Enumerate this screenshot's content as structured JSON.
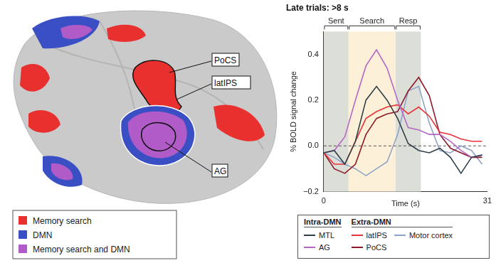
{
  "brain_map": {
    "region_labels": [
      "PoCS",
      "latIPS",
      "AG"
    ],
    "legend": [
      {
        "label": "Memory search",
        "color": "#e8312f"
      },
      {
        "label": "DMN",
        "color": "#3b4fc4"
      },
      {
        "label": "Memory search and DMN",
        "color": "#b05bc8"
      }
    ]
  },
  "chart_data": {
    "type": "line",
    "title": "Late trials: >8 s",
    "x_label": "Time (s)",
    "y_label": "% BOLD signal change",
    "x": [
      0,
      2,
      4,
      6,
      8,
      10,
      12,
      14,
      16,
      18,
      20,
      22,
      24,
      26,
      28,
      30
    ],
    "series": [
      {
        "name": "MTL",
        "color": "#2f3f4a",
        "values": [
          -0.03,
          -0.02,
          -0.08,
          0.02,
          0.2,
          0.26,
          0.2,
          0.12,
          0.01,
          -0.02,
          -0.03,
          -0.01,
          -0.05,
          -0.12,
          -0.05,
          -0.04
        ]
      },
      {
        "name": "AG",
        "color": "#b666c4",
        "values": [
          -0.03,
          -0.02,
          0.04,
          0.2,
          0.35,
          0.42,
          0.34,
          0.2,
          0.08,
          0.07,
          0.05,
          0.05,
          0.02,
          -0.02,
          -0.05,
          -0.04
        ]
      },
      {
        "name": "latIPS",
        "color": "#e8333a",
        "values": [
          -0.03,
          -0.08,
          -0.08,
          0.02,
          0.12,
          0.15,
          0.17,
          0.18,
          0.14,
          0.17,
          0.13,
          0.06,
          0.05,
          0.03,
          0.02,
          0.02
        ]
      },
      {
        "name": "PoCS",
        "color": "#8b1a2b",
        "values": [
          -0.03,
          -0.1,
          -0.12,
          -0.08,
          0.05,
          0.12,
          0.14,
          0.15,
          0.24,
          0.3,
          0.22,
          0.05,
          -0.01,
          -0.03,
          -0.05,
          -0.05
        ]
      },
      {
        "name": "Motor cortex",
        "color": "#8fa3c9",
        "values": [
          -0.03,
          -0.05,
          -0.08,
          -0.1,
          -0.13,
          -0.1,
          -0.07,
          0.05,
          0.24,
          0.26,
          0.1,
          -0.02,
          -0.03,
          0.0,
          -0.02,
          -0.08
        ]
      }
    ],
    "legend_groups": [
      {
        "title": "Intra-DMN",
        "series": [
          "MTL",
          "AG"
        ]
      },
      {
        "title": "Extra-DMN",
        "series": [
          "latIPS",
          "PoCS",
          "Motor cortex"
        ]
      }
    ],
    "phases": [
      {
        "label": "Sent",
        "start": 0,
        "end": 4.7,
        "color": "#dcdfd8"
      },
      {
        "label": "Search",
        "start": 4.7,
        "end": 13.6,
        "color": "#fcf1d8"
      },
      {
        "label": "Resp",
        "start": 13.6,
        "end": 18.4,
        "color": "#dcdfd8"
      }
    ],
    "reference_line": {
      "value": 0,
      "line_style": "dashed"
    },
    "xlim": [
      0,
      31
    ],
    "xticks": [
      0,
      31
    ],
    "ylim": [
      -0.2,
      0.5
    ],
    "yticks": [
      {
        "value": -0.2,
        "label": "−0.2"
      },
      {
        "value": 0,
        "label": "0.0"
      },
      {
        "value": 0.2,
        "label": "0.2"
      },
      {
        "value": 0.4,
        "label": "0.4"
      }
    ],
    "grid": false,
    "legend": "bottom"
  }
}
